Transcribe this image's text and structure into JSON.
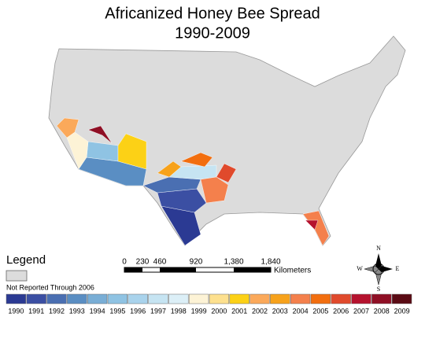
{
  "header": {
    "title": "Africanized Honey Bee Spread",
    "subtitle": "1990-2009"
  },
  "legend": {
    "title": "Legend",
    "not_reported": {
      "label": "Not Reported Through 2006",
      "color": "#dcdcdc"
    },
    "items": [
      {
        "label": "1990",
        "color": "#2b3a93"
      },
      {
        "label": "1991",
        "color": "#3b4fa3"
      },
      {
        "label": "1992",
        "color": "#4a6fb2"
      },
      {
        "label": "1993",
        "color": "#5a8ec3"
      },
      {
        "label": "1994",
        "color": "#79aed6"
      },
      {
        "label": "1995",
        "color": "#8fc3e3"
      },
      {
        "label": "1996",
        "color": "#a9d3ec"
      },
      {
        "label": "1997",
        "color": "#c6e4f2"
      },
      {
        "label": "1998",
        "color": "#dceff7"
      },
      {
        "label": "1999",
        "color": "#fdf3d6"
      },
      {
        "label": "2000",
        "color": "#fde08e"
      },
      {
        "label": "2001",
        "color": "#fcd116"
      },
      {
        "label": "2002",
        "color": "#fba95a"
      },
      {
        "label": "2003",
        "color": "#f7a21b"
      },
      {
        "label": "2004",
        "color": "#f4804c"
      },
      {
        "label": "2005",
        "color": "#f26e0f"
      },
      {
        "label": "2006",
        "color": "#e04a2c"
      },
      {
        "label": "2007",
        "color": "#b5122e"
      },
      {
        "label": "2008",
        "color": "#8f0f25"
      },
      {
        "label": "2009",
        "color": "#5a0a14"
      }
    ]
  },
  "scale_bar": {
    "labels": [
      "0",
      "230",
      "460",
      "920",
      "1,380",
      "1,840"
    ],
    "unit": "Kilometers"
  },
  "compass": {
    "n": "N",
    "s": "S",
    "e": "E",
    "w": "W"
  }
}
